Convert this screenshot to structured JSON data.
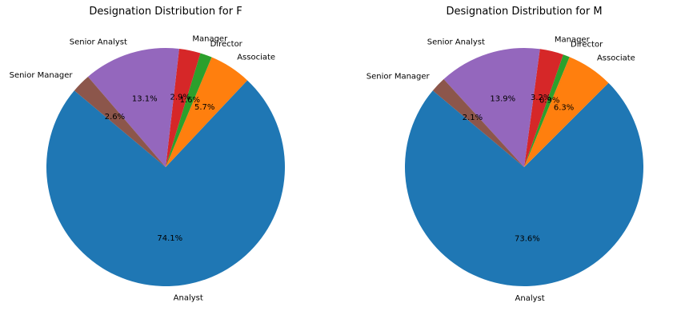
{
  "chart_data": [
    {
      "type": "pie",
      "title": "Designation Distribution for F",
      "start_angle_deg": 140,
      "direction": "counterclockwise",
      "slices": [
        {
          "label": "Analyst",
          "value": 74.1,
          "pct_label": "74.1%",
          "color": "#1f77b4"
        },
        {
          "label": "Associate",
          "value": 5.7,
          "pct_label": "5.7%",
          "color": "#ff7f0e"
        },
        {
          "label": "Director",
          "value": 1.6,
          "pct_label": "1.6%",
          "color": "#2ca02c"
        },
        {
          "label": "Manager",
          "value": 2.9,
          "pct_label": "2.9%",
          "color": "#d62728"
        },
        {
          "label": "Senior Analyst",
          "value": 13.1,
          "pct_label": "13.1%",
          "color": "#9467bd"
        },
        {
          "label": "Senior Manager",
          "value": 2.6,
          "pct_label": "2.6%",
          "color": "#8c564b"
        }
      ]
    },
    {
      "type": "pie",
      "title": "Designation Distribution for M",
      "start_angle_deg": 140,
      "direction": "counterclockwise",
      "slices": [
        {
          "label": "Analyst",
          "value": 73.6,
          "pct_label": "73.6%",
          "color": "#1f77b4"
        },
        {
          "label": "Associate",
          "value": 6.3,
          "pct_label": "6.3%",
          "color": "#ff7f0e"
        },
        {
          "label": "Director",
          "value": 0.9,
          "pct_label": "0.9%",
          "color": "#2ca02c"
        },
        {
          "label": "Manager",
          "value": 3.2,
          "pct_label": "3.2%",
          "color": "#d62728"
        },
        {
          "label": "Senior Analyst",
          "value": 13.9,
          "pct_label": "13.9%",
          "color": "#9467bd"
        },
        {
          "label": "Senior Manager",
          "value": 2.1,
          "pct_label": "2.1%",
          "color": "#8c564b"
        }
      ]
    }
  ]
}
